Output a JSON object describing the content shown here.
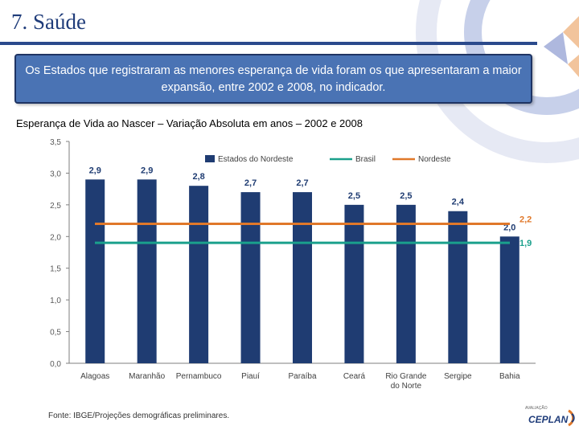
{
  "slide": {
    "title": "7. Saúde",
    "callout": "Os Estados que registraram as menores esperança de vida foram os que apresentaram a maior expansão, entre 2002 e 2008, no indicador.",
    "subtitle": "Esperança de Vida ao Nascer – Variação Absoluta em anos – 2002 e 2008",
    "source": "Fonte: IBGE/Projeções demográficas preliminares.",
    "logo_small": "AVALIAÇÃO",
    "logo_main": "CEPLAN"
  },
  "colors": {
    "bar": "#1f3c72",
    "brasil": "#1aa08c",
    "nordeste": "#e0782a",
    "accent": "#2b4a8c"
  },
  "chart_data": {
    "type": "bar",
    "title": "Esperança de Vida ao Nascer – Variação Absoluta em anos – 2002 e 2008",
    "categories": [
      "Alagoas",
      "Maranhão",
      "Pernambuco",
      "Piauí",
      "Paraíba",
      "Ceará",
      "Rio Grande do Norte",
      "Sergipe",
      "Bahia"
    ],
    "series": [
      {
        "name": "Estados do Nordeste",
        "values": [
          2.9,
          2.9,
          2.8,
          2.7,
          2.7,
          2.5,
          2.5,
          2.4,
          2.0
        ]
      }
    ],
    "reference_lines": [
      {
        "name": "Brasil",
        "value": 1.9
      },
      {
        "name": "Nordeste",
        "value": 2.2
      }
    ],
    "value_labels": [
      "2,9",
      "2,9",
      "2,8",
      "2,7",
      "2,7",
      "2,5",
      "2,5",
      "2,4",
      "2,0"
    ],
    "reference_labels": [
      "1,9",
      "2,2"
    ],
    "y_ticks": [
      "0,0",
      "0,5",
      "1,0",
      "1,5",
      "2,0",
      "2,5",
      "3,0",
      "3,5"
    ],
    "y_tick_values": [
      0,
      0.5,
      1.0,
      1.5,
      2.0,
      2.5,
      3.0,
      3.5
    ],
    "ylim": [
      0,
      3.5
    ],
    "legend": [
      "Estados do Nordeste",
      "Brasil",
      "Nordeste"
    ],
    "legend_position": "top",
    "grid": false
  }
}
